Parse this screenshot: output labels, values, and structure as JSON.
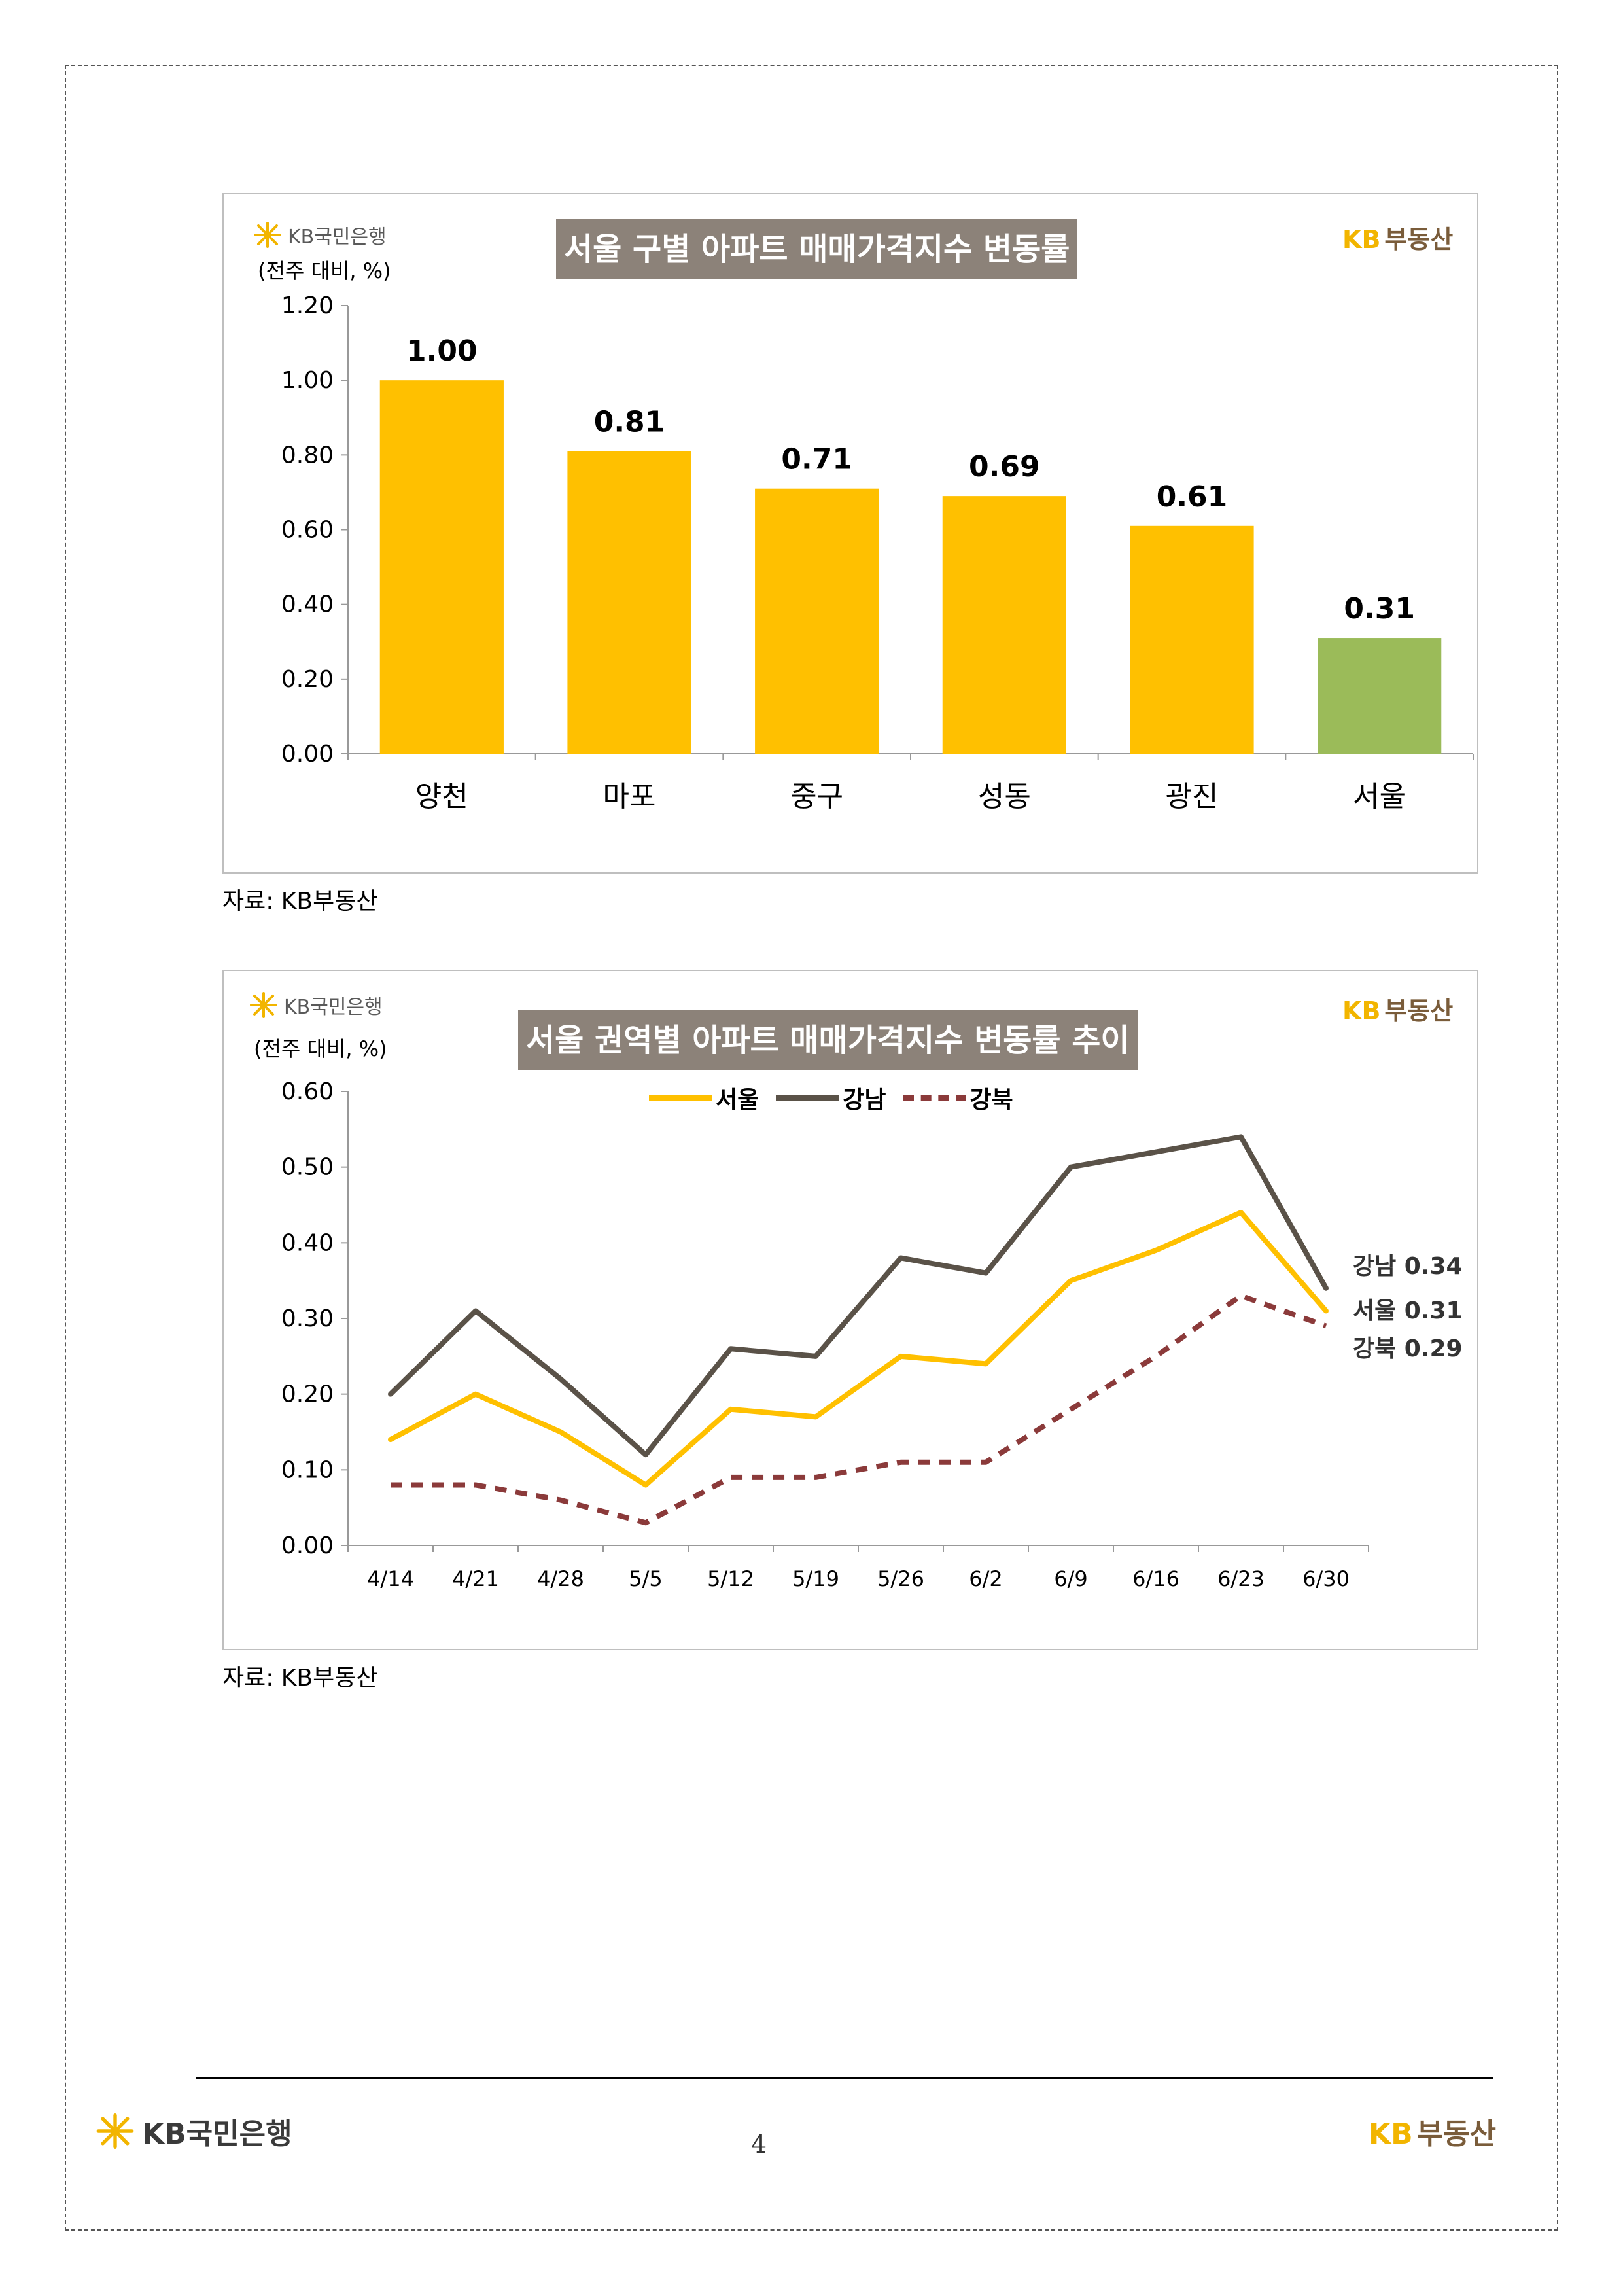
{
  "brand": {
    "bank_name": "KB국민은행",
    "estate_name": "KB부동산",
    "estate_kb": "KB",
    "estate_word": "부동산",
    "accent_yellow": "#FFC000",
    "accent_green": "#9BBB59",
    "title_bg": "#8C8279"
  },
  "charts": [
    {
      "title": "서울 구별 아파트 매매가격지수 변동률",
      "unit_label": "(전주 대비, %)",
      "source": "자료: KB부동산"
    },
    {
      "title": "서울 권역별 아파트 매매가격지수 변동률 추이",
      "unit_label": "(전주 대비, %)",
      "source": "자료: KB부동산",
      "end_labels": [
        "강남 0.34",
        "서울 0.31",
        "강북 0.29"
      ]
    }
  ],
  "chart_data": [
    {
      "type": "bar",
      "title": "서울 구별 아파트 매매가격지수 변동률",
      "ylabel": "(전주 대비, %)",
      "categories": [
        "양천",
        "마포",
        "중구",
        "성동",
        "광진",
        "서울"
      ],
      "values": [
        1.0,
        0.81,
        0.71,
        0.69,
        0.61,
        0.31
      ],
      "value_labels": [
        "1.00",
        "0.81",
        "0.71",
        "0.69",
        "0.61",
        "0.31"
      ],
      "bar_colors": [
        "#FFC000",
        "#FFC000",
        "#FFC000",
        "#FFC000",
        "#FFC000",
        "#9BBB59"
      ],
      "ylim": [
        0,
        1.2
      ],
      "yticks": [
        "0.00",
        "0.20",
        "0.40",
        "0.60",
        "0.80",
        "1.00",
        "1.20"
      ],
      "grid": false
    },
    {
      "type": "line",
      "title": "서울 권역별 아파트 매매가격지수 변동률 추이",
      "ylabel": "(전주 대비, %)",
      "x": [
        "4/14",
        "4/21",
        "4/28",
        "5/5",
        "5/12",
        "5/19",
        "5/26",
        "6/2",
        "6/9",
        "6/16",
        "6/23",
        "6/30"
      ],
      "series": [
        {
          "name": "서울",
          "color": "#FFC000",
          "style": "solid",
          "values": [
            0.14,
            0.2,
            0.15,
            0.08,
            0.18,
            0.17,
            0.25,
            0.24,
            0.35,
            0.39,
            0.44,
            0.31
          ]
        },
        {
          "name": "강남",
          "color": "#5A5248",
          "style": "solid",
          "values": [
            0.2,
            0.31,
            0.22,
            0.12,
            0.26,
            0.25,
            0.38,
            0.36,
            0.5,
            0.52,
            0.54,
            0.34
          ]
        },
        {
          "name": "강북",
          "color": "#8B3A3A",
          "style": "dashed",
          "values": [
            0.08,
            0.08,
            0.06,
            0.03,
            0.09,
            0.09,
            0.11,
            0.11,
            0.18,
            0.25,
            0.33,
            0.29
          ]
        }
      ],
      "ylim": [
        0,
        0.6
      ],
      "yticks": [
        "0.00",
        "0.10",
        "0.20",
        "0.30",
        "0.40",
        "0.50",
        "0.60"
      ],
      "legend": "top-center",
      "grid": false
    }
  ],
  "footer": {
    "page_number": "4"
  }
}
